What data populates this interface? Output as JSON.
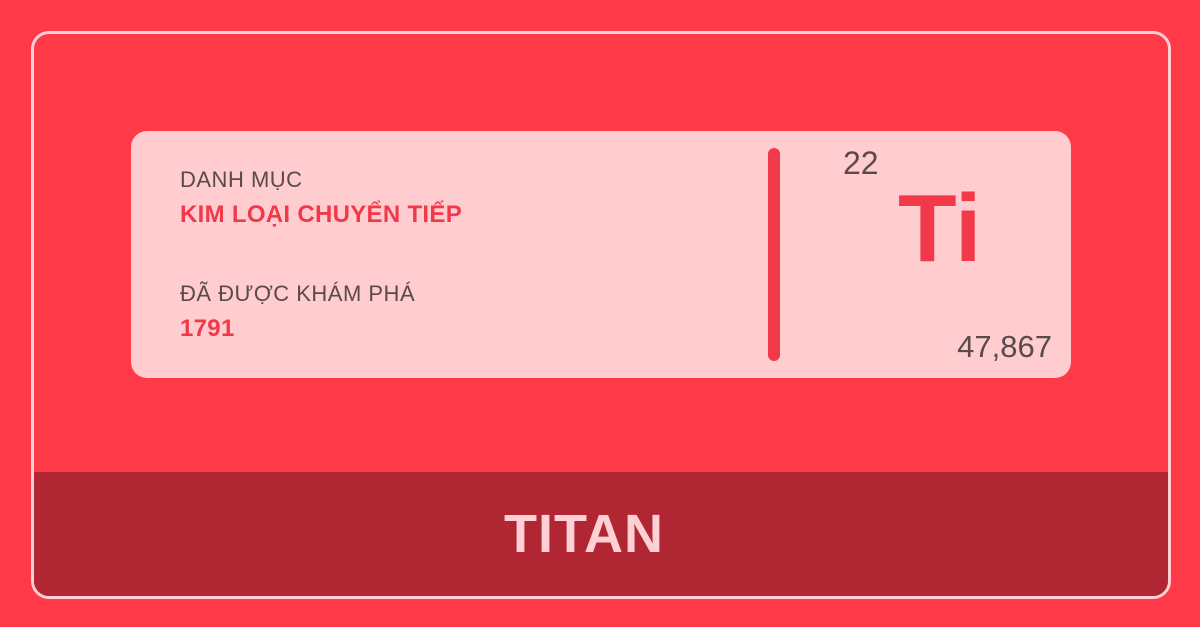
{
  "card": {
    "category_label": "DANH MỤC",
    "category_value": "KIM LOẠI CHUYỂN TIẾP",
    "discovered_label": "ĐÃ ĐƯỢC KHÁM PHÁ",
    "discovered_value": "1791",
    "atomic_number": "22",
    "symbol": "Ti",
    "atomic_mass": "47,867"
  },
  "footer": {
    "name": "TITAN"
  },
  "colors": {
    "background": "#ff3a48",
    "card": "#ffcdd0",
    "accent": "#f2394a",
    "footer": "#b02632",
    "border": "#ffd0d3"
  }
}
